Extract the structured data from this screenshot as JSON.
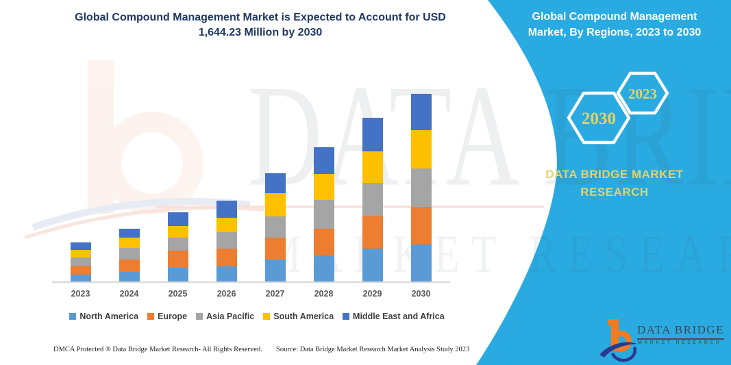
{
  "left": {
    "title_line1": "Global Compound Management Market is Expected to Account for USD",
    "title_line2": "1,644.23 Million by 2030"
  },
  "chart_data": {
    "type": "bar",
    "stacked": true,
    "title": "Global Compound Management Market is Expected to Account for USD 1,644.23 Million by 2030",
    "unit": "USD Million",
    "categories": [
      "2023",
      "2024",
      "2025",
      "2026",
      "2027",
      "2028",
      "2029",
      "2030"
    ],
    "series": [
      {
        "name": "North America",
        "color": "#5B9BD5",
        "values": [
          64,
          88,
          128,
          140,
          190,
          231,
          293,
          326.23
        ]
      },
      {
        "name": "Europe",
        "color": "#ED7D31",
        "values": [
          80,
          109,
          150,
          151,
          197,
          235,
          285,
          331
        ]
      },
      {
        "name": "Asia Pacific",
        "color": "#A5A5A5",
        "values": [
          74,
          100,
          110,
          143,
          187,
          249,
          289,
          335
        ]
      },
      {
        "name": "South America",
        "color": "#FFC000",
        "values": [
          62,
          94,
          104,
          130,
          203,
          229,
          275,
          334
        ]
      },
      {
        "name": "Middle East and Africa",
        "color": "#4472C4",
        "values": [
          67,
          75,
          118,
          150,
          175,
          235,
          291,
          318
        ]
      }
    ],
    "totals_by_year": [
      347,
      466,
      610,
      714,
      952,
      1179,
      1433,
      1644.23
    ],
    "xlabel": "",
    "ylabel": "",
    "ylim": [
      0,
      1700
    ],
    "grid": false,
    "legend_position": "bottom"
  },
  "footer": {
    "dmca": "DMCA Protected ® Data Bridge Market Research-  All Rights Reserved.",
    "source": "Source: Data Bridge Market Research  Market Analysis Study 2023"
  },
  "panel": {
    "title_line1": "Global Compound Management",
    "title_line2": "Market, By Regions, 2023 to 2030",
    "hex_back_label": "2030",
    "hex_front_label": "2023",
    "brand_line1": "DATA BRIDGE MARKET",
    "brand_line2": "RESEARCH",
    "logo_title": "DATA BRIDGE",
    "logo_subtitle": "MARKET RESEARCH"
  },
  "watermark": {
    "row1": "DATA BRIDGE",
    "row2": "MARKET RESEARCH"
  },
  "colors": {
    "panel_blue": "#29ABE2",
    "title_navy": "#1F3864",
    "accent_yellow": "#E2D269",
    "logo_orange": "#F47B20",
    "logo_navy": "#2B3990",
    "axis_gray": "#595959",
    "legend_text": "#3F3F3F"
  }
}
